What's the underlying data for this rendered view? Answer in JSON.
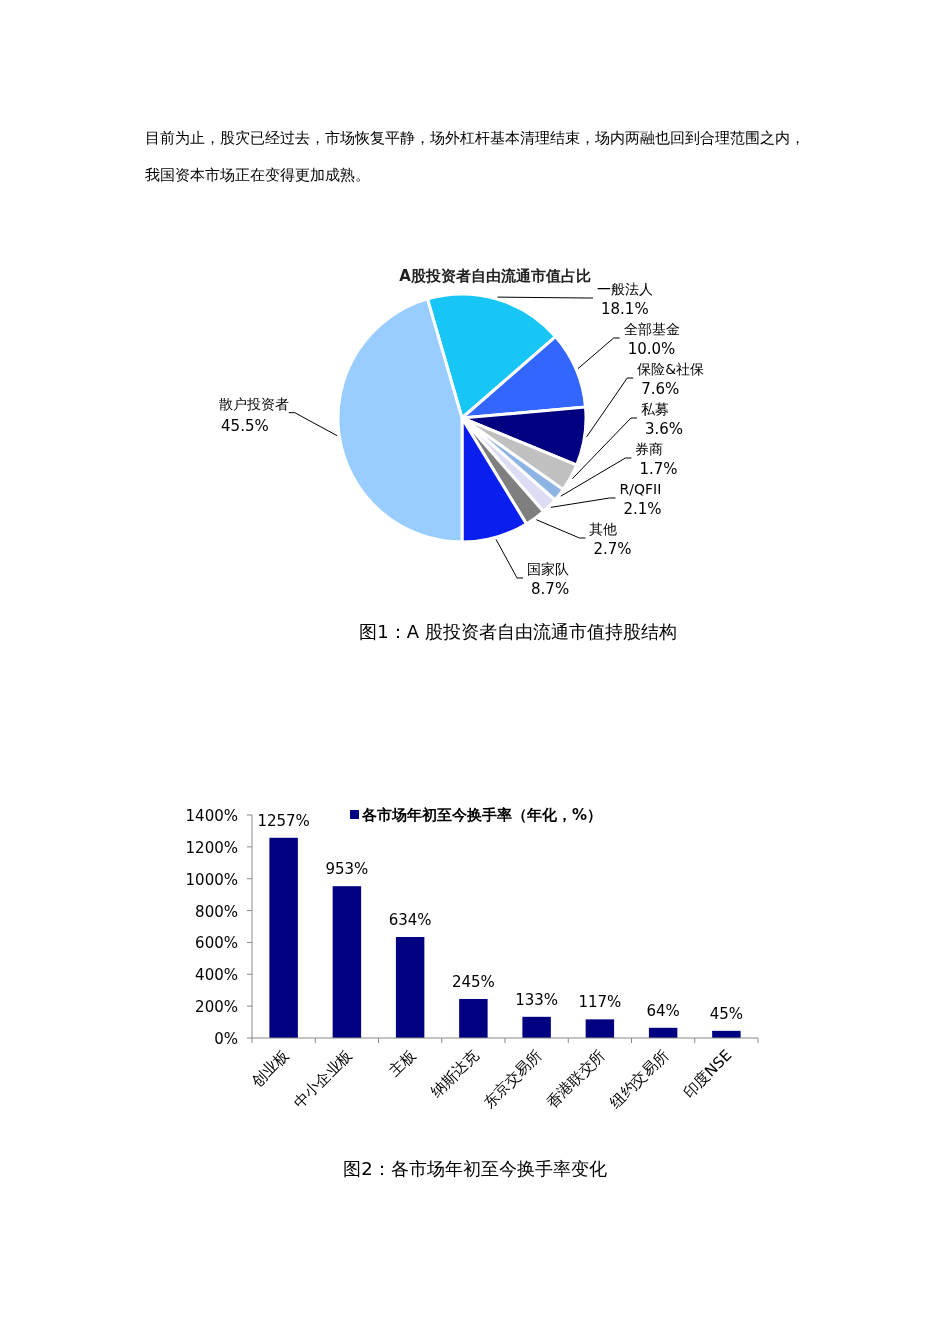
{
  "chart_data": [
    {
      "type": "pie",
      "title": "A股投资者自由流通市值占比",
      "categories": [
        "一般法人",
        "全部基金",
        "保险&社保",
        "私募",
        "券商",
        "R/QFII",
        "其他",
        "国家队",
        "散户投资者"
      ],
      "values": [
        18.1,
        10.0,
        7.6,
        3.6,
        1.7,
        2.1,
        2.7,
        8.7,
        45.5
      ],
      "value_labels": [
        "18.1%",
        "10.0%",
        "7.6%",
        "3.6%",
        "1.7%",
        "2.1%",
        "2.7%",
        "8.7%",
        "45.5%"
      ],
      "colors": [
        "#17c6f5",
        "#3366ff",
        "#000080",
        "#c0c0c0",
        "#8db4e2",
        "#dcdcf5",
        "#7f7f7f",
        "#0a1ef0",
        "#99ccff"
      ],
      "annotations": [
        "目前为止，股灾已经过去，市场恢复平静，场外杠杆基本清理结束，场内两融也回到合理范围之内，我国资本市场正在变得更加成熟。",
        "图1：A 股投资者自由流通市值持股结构"
      ]
    },
    {
      "type": "bar",
      "categories": [
        "创业板",
        "中小企业板",
        "主板",
        "纳斯达克",
        "东京交易所",
        "香港联交所",
        "纽约交易所",
        "印度NSE"
      ],
      "series": [
        {
          "name": "各市场年初至今换手率（年化，%）",
          "color": "#000080",
          "values": [
            1257,
            953,
            634,
            245,
            133,
            117,
            64,
            45
          ],
          "value_labels": [
            "1257%",
            "953%",
            "634%",
            "245%",
            "133%",
            "117%",
            "64%",
            "45%"
          ]
        }
      ],
      "ylim": [
        0,
        1400
      ],
      "yticks": [
        {
          "value": 0,
          "label": "0%"
        },
        {
          "value": 200,
          "label": "200%"
        },
        {
          "value": 400,
          "label": "400%"
        },
        {
          "value": 600,
          "label": "600%"
        },
        {
          "value": 800,
          "label": "800%"
        },
        {
          "value": 1000,
          "label": "1000%"
        },
        {
          "value": 1200,
          "label": "1200%"
        },
        {
          "value": 1400,
          "label": "1400%"
        }
      ],
      "legend": "top",
      "annotations": [
        "图2：各市场年初至今换手率变化"
      ]
    }
  ]
}
